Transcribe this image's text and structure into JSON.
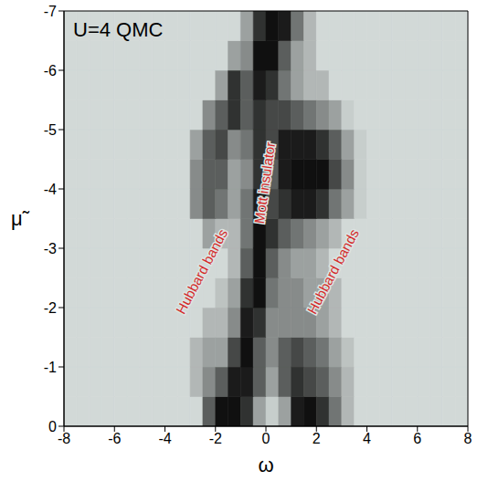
{
  "chart_data": {
    "type": "heatmap",
    "title": "U=4 QMC",
    "x_label": "ω",
    "y_label": "μ̃",
    "xlim": [
      -8,
      8
    ],
    "ylim": [
      0,
      -7
    ],
    "xticks": [
      -8,
      -6,
      -4,
      -2,
      0,
      2,
      4,
      6,
      8
    ],
    "yticks": [
      0,
      -1,
      -2,
      -3,
      -4,
      -5,
      -6,
      -7
    ],
    "colors": [
      "#dde4e2",
      "#050505"
    ],
    "x_edges": [
      -8,
      -7.5,
      -7,
      -6.5,
      -6,
      -5.5,
      -5,
      -4.5,
      -4,
      -3.5,
      -3,
      -2.5,
      -2,
      -1.5,
      -1,
      -0.5,
      0,
      0.5,
      1,
      1.5,
      2,
      2.5,
      3,
      3.5,
      4,
      4.5,
      5,
      5.5,
      6,
      6.5,
      7,
      7.5,
      8
    ],
    "y_edges": [
      0,
      -0.5,
      -1,
      -1.5,
      -2,
      -2.5,
      -3,
      -3.5,
      -4,
      -4.5,
      -5,
      -5.5,
      -6,
      -6.5,
      -7
    ],
    "cells": [
      [
        0.05,
        0.05,
        0.05,
        0.05,
        0.05,
        0.05,
        0.05,
        0.05,
        0.05,
        0.05,
        0.05,
        0.6,
        0.95,
        0.95,
        0.8,
        0.3,
        0.1,
        0.3,
        0.9,
        0.95,
        0.8,
        0.5,
        0.2,
        0.05,
        0.05,
        0.05,
        0.05,
        0.05,
        0.05,
        0.05,
        0.05,
        0.05
      ],
      [
        0.05,
        0.05,
        0.05,
        0.05,
        0.05,
        0.05,
        0.05,
        0.05,
        0.05,
        0.05,
        0.2,
        0.4,
        0.6,
        0.9,
        0.9,
        0.6,
        0.3,
        0.6,
        0.8,
        0.7,
        0.6,
        0.4,
        0.2,
        0.05,
        0.05,
        0.05,
        0.05,
        0.05,
        0.05,
        0.05,
        0.05,
        0.05
      ],
      [
        0.05,
        0.05,
        0.05,
        0.05,
        0.05,
        0.05,
        0.05,
        0.05,
        0.05,
        0.05,
        0.2,
        0.3,
        0.3,
        0.7,
        0.95,
        0.6,
        0.4,
        0.6,
        0.7,
        0.6,
        0.5,
        0.3,
        0.15,
        0.05,
        0.05,
        0.05,
        0.05,
        0.05,
        0.05,
        0.05,
        0.05,
        0.05
      ],
      [
        0.05,
        0.05,
        0.05,
        0.05,
        0.05,
        0.05,
        0.05,
        0.05,
        0.05,
        0.05,
        0.05,
        0.2,
        0.2,
        0.4,
        0.9,
        0.8,
        0.4,
        0.4,
        0.4,
        0.4,
        0.3,
        0.2,
        0.05,
        0.05,
        0.05,
        0.05,
        0.05,
        0.05,
        0.05,
        0.05,
        0.05,
        0.05
      ],
      [
        0.05,
        0.05,
        0.05,
        0.05,
        0.05,
        0.05,
        0.05,
        0.05,
        0.05,
        0.05,
        0.05,
        0.05,
        0.15,
        0.3,
        0.8,
        0.95,
        0.5,
        0.4,
        0.4,
        0.3,
        0.3,
        0.2,
        0.05,
        0.05,
        0.05,
        0.05,
        0.05,
        0.05,
        0.05,
        0.05,
        0.05,
        0.05
      ],
      [
        0.05,
        0.05,
        0.05,
        0.05,
        0.05,
        0.05,
        0.05,
        0.05,
        0.05,
        0.05,
        0.05,
        0.05,
        0.05,
        0.2,
        0.6,
        0.95,
        0.6,
        0.4,
        0.3,
        0.3,
        0.2,
        0.05,
        0.05,
        0.05,
        0.05,
        0.05,
        0.05,
        0.05,
        0.05,
        0.05,
        0.05,
        0.05
      ],
      [
        0.05,
        0.05,
        0.05,
        0.05,
        0.05,
        0.05,
        0.05,
        0.05,
        0.05,
        0.05,
        0.05,
        0.3,
        0.2,
        0.2,
        0.5,
        0.95,
        0.8,
        0.6,
        0.5,
        0.4,
        0.3,
        0.2,
        0.05,
        0.05,
        0.05,
        0.05,
        0.05,
        0.05,
        0.05,
        0.05,
        0.05,
        0.05
      ],
      [
        0.05,
        0.05,
        0.05,
        0.05,
        0.05,
        0.05,
        0.05,
        0.05,
        0.05,
        0.05,
        0.4,
        0.6,
        0.5,
        0.3,
        0.5,
        0.9,
        0.7,
        0.8,
        0.9,
        0.9,
        0.8,
        0.5,
        0.3,
        0.1,
        0.05,
        0.05,
        0.05,
        0.05,
        0.05,
        0.05,
        0.05,
        0.05
      ],
      [
        0.05,
        0.05,
        0.05,
        0.05,
        0.05,
        0.05,
        0.05,
        0.05,
        0.05,
        0.05,
        0.4,
        0.6,
        0.6,
        0.3,
        0.4,
        0.8,
        0.6,
        0.9,
        0.95,
        0.95,
        0.95,
        0.7,
        0.4,
        0.1,
        0.05,
        0.05,
        0.05,
        0.05,
        0.05,
        0.05,
        0.05,
        0.05
      ],
      [
        0.05,
        0.05,
        0.05,
        0.05,
        0.05,
        0.05,
        0.05,
        0.05,
        0.05,
        0.05,
        0.3,
        0.6,
        0.7,
        0.4,
        0.5,
        0.8,
        0.7,
        0.9,
        0.9,
        0.9,
        0.8,
        0.6,
        0.3,
        0.1,
        0.05,
        0.05,
        0.05,
        0.05,
        0.05,
        0.05,
        0.05,
        0.05
      ],
      [
        0.05,
        0.05,
        0.05,
        0.05,
        0.05,
        0.05,
        0.05,
        0.05,
        0.05,
        0.05,
        0.05,
        0.4,
        0.6,
        0.8,
        0.6,
        0.8,
        0.7,
        0.7,
        0.6,
        0.5,
        0.4,
        0.3,
        0.1,
        0.05,
        0.05,
        0.05,
        0.05,
        0.05,
        0.05,
        0.05,
        0.05,
        0.05
      ],
      [
        0.05,
        0.05,
        0.05,
        0.05,
        0.05,
        0.05,
        0.05,
        0.05,
        0.05,
        0.05,
        0.05,
        0.05,
        0.3,
        0.8,
        0.6,
        0.9,
        0.8,
        0.5,
        0.3,
        0.2,
        0.2,
        0.05,
        0.05,
        0.05,
        0.05,
        0.05,
        0.05,
        0.05,
        0.05,
        0.05,
        0.05,
        0.05
      ],
      [
        0.05,
        0.05,
        0.05,
        0.05,
        0.05,
        0.05,
        0.05,
        0.05,
        0.05,
        0.05,
        0.05,
        0.05,
        0.05,
        0.3,
        0.4,
        0.95,
        0.95,
        0.6,
        0.3,
        0.2,
        0.05,
        0.05,
        0.05,
        0.05,
        0.05,
        0.05,
        0.05,
        0.05,
        0.05,
        0.05,
        0.05,
        0.05
      ],
      [
        0.05,
        0.05,
        0.05,
        0.05,
        0.05,
        0.05,
        0.05,
        0.05,
        0.05,
        0.05,
        0.05,
        0.05,
        0.05,
        0.05,
        0.3,
        0.8,
        0.95,
        0.9,
        0.5,
        0.2,
        0.05,
        0.05,
        0.05,
        0.05,
        0.05,
        0.05,
        0.05,
        0.05,
        0.05,
        0.05,
        0.05,
        0.05
      ]
    ],
    "annotations": [
      {
        "text": "Hubbard bands",
        "x": -2.5,
        "y": -2.6
      },
      {
        "text": "Mott insulator",
        "x": 0,
        "y": -4.1
      },
      {
        "text": "Hubbard bands",
        "x": 2.7,
        "y": -2.6
      }
    ]
  }
}
